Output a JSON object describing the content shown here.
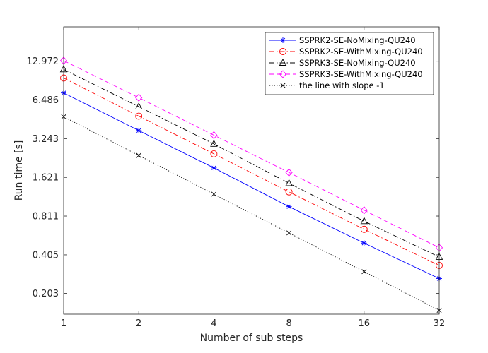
{
  "chart_data": {
    "type": "line",
    "title": "",
    "xlabel": "Number of sub steps",
    "ylabel": "Run time [s]",
    "x_scale": "log2",
    "y_scale": "log",
    "x": [
      1,
      2,
      4,
      8,
      16,
      32
    ],
    "x_tick_labels": [
      "1",
      "2",
      "4",
      "8",
      "16",
      "32"
    ],
    "y_ticks": [
      0.203,
      0.405,
      0.811,
      1.621,
      3.243,
      6.486,
      12.972
    ],
    "y_tick_labels": [
      "0.203",
      "0.405",
      "0.811",
      "1.621",
      "3.243",
      "6.486",
      "12.972"
    ],
    "xlim": [
      1,
      32
    ],
    "ylim": [
      0.14,
      24
    ],
    "legend_position": "top-right",
    "series": [
      {
        "name": "SSPRK2-SE-NoMixing-QU240",
        "color": "#0000ff",
        "dash": "solid",
        "marker": "asterisk",
        "values": [
          7.35,
          3.75,
          1.92,
          0.96,
          0.5,
          0.265
        ]
      },
      {
        "name": "SSPRK2-SE-WithMixing-QU240",
        "color": "#ff0000",
        "dash": "dashdot",
        "marker": "circle",
        "values": [
          9.6,
          4.85,
          2.47,
          1.25,
          0.64,
          0.335
        ]
      },
      {
        "name": "SSPRK3-SE-NoMixing-QU240",
        "color": "#000000",
        "dash": "dashdot",
        "marker": "triangle",
        "values": [
          11.2,
          5.75,
          2.95,
          1.46,
          0.74,
          0.39
        ]
      },
      {
        "name": "SSPRK3-SE-WithMixing-QU240",
        "color": "#ff00ff",
        "dash": "dashed",
        "marker": "diamond",
        "values": [
          13.1,
          6.75,
          3.45,
          1.77,
          0.9,
          0.46
        ]
      },
      {
        "name": "the line with slope -1",
        "color": "#000000",
        "dash": "dotted",
        "marker": "x",
        "values": [
          4.8,
          2.4,
          1.2,
          0.6,
          0.3,
          0.15
        ]
      }
    ]
  }
}
